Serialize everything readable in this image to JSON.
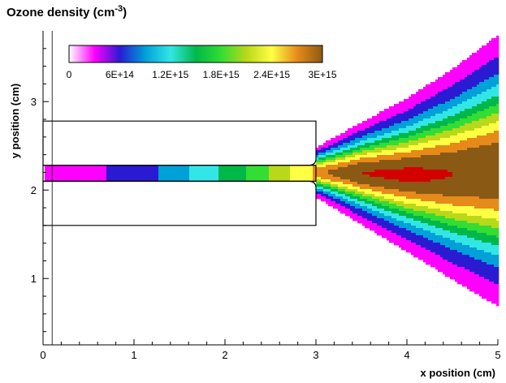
{
  "title": {
    "main": "Ozone density (cm",
    "superscript": "-3",
    "close": ")"
  },
  "chart_data": {
    "type": "heatmap",
    "title": "Ozone density (cm-3)",
    "xlabel": "x position (cm)",
    "ylabel": "y position (cm)",
    "xlim": [
      0,
      5
    ],
    "ylim": [
      0.25,
      3.8
    ],
    "x_ticks": [
      "0",
      "1",
      "2",
      "3",
      "4",
      "5"
    ],
    "y_ticks": [
      "1",
      "2",
      "3"
    ],
    "x_tick_values": [
      0,
      1,
      2,
      3,
      4,
      5
    ],
    "y_tick_values": [
      1,
      2,
      3
    ],
    "colorbar": {
      "labels": [
        "0",
        "6E+14",
        "1.2E+15",
        "1.8E+15",
        "2.4E+15",
        "3E+15"
      ],
      "label_values": [
        0,
        600000000000000.0,
        1200000000000000.0,
        1800000000000000.0,
        2400000000000000.0,
        3000000000000000.0
      ],
      "levels": [
        0,
        300000000000000.0,
        600000000000000.0,
        900000000000000.0,
        1200000000000000.0,
        1500000000000000.0,
        1800000000000000.0,
        2100000000000000.0,
        2400000000000000.0,
        2700000000000000.0,
        3000000000000000.0
      ],
      "colors": [
        "#ffffff",
        "#ff99ff",
        "#ff00ff",
        "#2a1bd2",
        "#00a0d8",
        "#33e6e6",
        "#00b84a",
        "#33dd33",
        "#b9d81a",
        "#ffff44",
        "#e68a1a",
        "#8a5a14",
        "#ff4a4a",
        "#d40000"
      ]
    },
    "geometry": {
      "tube_x": [
        0,
        3
      ],
      "upper_electrode_y": [
        2.28,
        2.78
      ],
      "lower_electrode_y": [
        1.6,
        2.1
      ],
      "channel_y": [
        2.1,
        2.28
      ],
      "outlet_x": 3
    },
    "channel_profile": {
      "x": [
        0.3,
        1.1,
        1.6,
        2.1,
        2.6,
        3.0
      ],
      "ozone": [
        150000000000000.0,
        450000000000000.0,
        900000000000000.0,
        1350000000000000.0,
        1950000000000000.0,
        2450000000000000.0
      ]
    },
    "jet_profile": {
      "x": [
        3.0,
        3.5,
        4.0,
        4.5,
        5.0
      ],
      "peak_ozone": [
        2600000000000000.0,
        3000000000000000.0,
        3050000000000000.0,
        3000000000000000.0,
        3000000000000000.0
      ],
      "centerline_y": [
        2.2,
        2.19,
        2.17,
        2.18,
        2.22
      ],
      "half_width": [
        0.15,
        0.3,
        0.45,
        0.62,
        0.8
      ]
    }
  }
}
